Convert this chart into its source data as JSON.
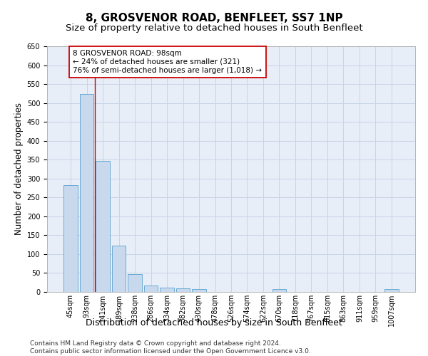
{
  "title": "8, GROSVENOR ROAD, BENFLEET, SS7 1NP",
  "subtitle": "Size of property relative to detached houses in South Benfleet",
  "xlabel": "Distribution of detached houses by size in South Benfleet",
  "ylabel": "Number of detached properties",
  "categories": [
    "45sqm",
    "93sqm",
    "141sqm",
    "189sqm",
    "238sqm",
    "286sqm",
    "334sqm",
    "382sqm",
    "430sqm",
    "478sqm",
    "526sqm",
    "574sqm",
    "622sqm",
    "670sqm",
    "718sqm",
    "767sqm",
    "815sqm",
    "863sqm",
    "911sqm",
    "959sqm",
    "1007sqm"
  ],
  "values": [
    283,
    523,
    347,
    122,
    48,
    17,
    11,
    10,
    7,
    0,
    0,
    0,
    0,
    8,
    0,
    0,
    0,
    0,
    0,
    0,
    7
  ],
  "bar_color": "#c8d9ee",
  "bar_edge_color": "#6aaad4",
  "grid_color": "#c8d4e8",
  "background_color": "#e8eef8",
  "vline_x": 1.5,
  "vline_color": "#cc0000",
  "annotation_text": "8 GROSVENOR ROAD: 98sqm\n← 24% of detached houses are smaller (321)\n76% of semi-detached houses are larger (1,018) →",
  "annotation_box_color": "#ffffff",
  "annotation_box_edge": "#cc0000",
  "ylim": [
    0,
    650
  ],
  "yticks": [
    0,
    50,
    100,
    150,
    200,
    250,
    300,
    350,
    400,
    450,
    500,
    550,
    600,
    650
  ],
  "footer": "Contains HM Land Registry data © Crown copyright and database right 2024.\nContains public sector information licensed under the Open Government Licence v3.0.",
  "title_fontsize": 11,
  "subtitle_fontsize": 9.5,
  "xlabel_fontsize": 9,
  "ylabel_fontsize": 8.5,
  "tick_fontsize": 7,
  "footer_fontsize": 6.5,
  "annot_fontsize": 7.5
}
